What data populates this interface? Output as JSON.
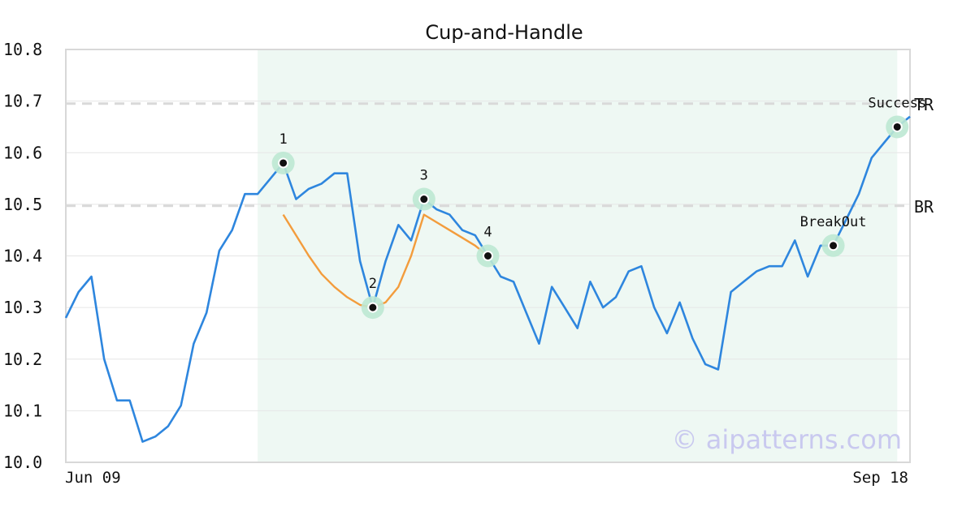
{
  "chart_data": {
    "type": "line",
    "title": "Cup-and-Handle",
    "xlabel": "",
    "ylabel": "",
    "ylim": [
      10.0,
      10.8
    ],
    "y_ticks": [
      "10.0",
      "10.1",
      "10.2",
      "10.3",
      "10.4",
      "10.5",
      "10.6",
      "10.7",
      "10.8"
    ],
    "x_tick_labels": [
      "Jun 09",
      "Sep 18"
    ],
    "grid": true,
    "series": [
      {
        "color": "#2e86de",
        "values": [
          10.28,
          10.33,
          10.36,
          10.2,
          10.12,
          10.12,
          10.04,
          10.05,
          10.07,
          10.11,
          10.23,
          10.29,
          10.41,
          10.45,
          10.52,
          10.52,
          10.55,
          10.58,
          10.51,
          10.53,
          10.54,
          10.56,
          10.56,
          10.39,
          10.3,
          10.39,
          10.46,
          10.43,
          10.51,
          10.49,
          10.48,
          10.45,
          10.44,
          10.4,
          10.36,
          10.35,
          10.29,
          10.23,
          10.34,
          10.3,
          10.26,
          10.35,
          10.3,
          10.32,
          10.37,
          10.38,
          10.3,
          10.25,
          10.31,
          10.24,
          10.19,
          10.18,
          10.33,
          10.35,
          10.37,
          10.38,
          10.38,
          10.43,
          10.36,
          10.42,
          10.42,
          10.47,
          10.52,
          10.59,
          10.62,
          10.65,
          10.67
        ]
      },
      {
        "color": "#f39c3c",
        "points": [
          [
            17,
            10.48
          ],
          [
            18,
            10.44
          ],
          [
            19,
            10.4
          ],
          [
            20,
            10.365
          ],
          [
            21,
            10.34
          ],
          [
            22,
            10.32
          ],
          [
            23,
            10.305
          ],
          [
            24,
            10.3
          ],
          [
            25,
            10.31
          ],
          [
            26,
            10.34
          ],
          [
            27,
            10.4
          ],
          [
            28,
            10.48
          ],
          [
            29,
            10.465
          ],
          [
            30,
            10.45
          ],
          [
            31,
            10.435
          ],
          [
            32,
            10.42
          ],
          [
            33,
            10.4
          ]
        ]
      }
    ],
    "highlight_region": {
      "x_start": 15,
      "x_end": 65,
      "color": "#eef8f3"
    },
    "levels": [
      {
        "label": "TR",
        "y": 10.695
      },
      {
        "label": "BR",
        "y": 10.497
      }
    ],
    "markers": [
      {
        "label": "1",
        "x": 17,
        "y": 10.58,
        "label_pos": "above"
      },
      {
        "label": "2",
        "x": 24,
        "y": 10.3,
        "label_pos": "above"
      },
      {
        "label": "3",
        "x": 28,
        "y": 10.51,
        "label_pos": "above"
      },
      {
        "label": "4",
        "x": 33,
        "y": 10.4,
        "label_pos": "above"
      },
      {
        "label": "BreakOut",
        "x": 60,
        "y": 10.42,
        "label_pos": "above"
      },
      {
        "label": "Success",
        "x": 65,
        "y": 10.65,
        "label_pos": "above"
      }
    ],
    "marker_halo_color": "#bde8d3",
    "watermark": "© aipatterns.com"
  }
}
